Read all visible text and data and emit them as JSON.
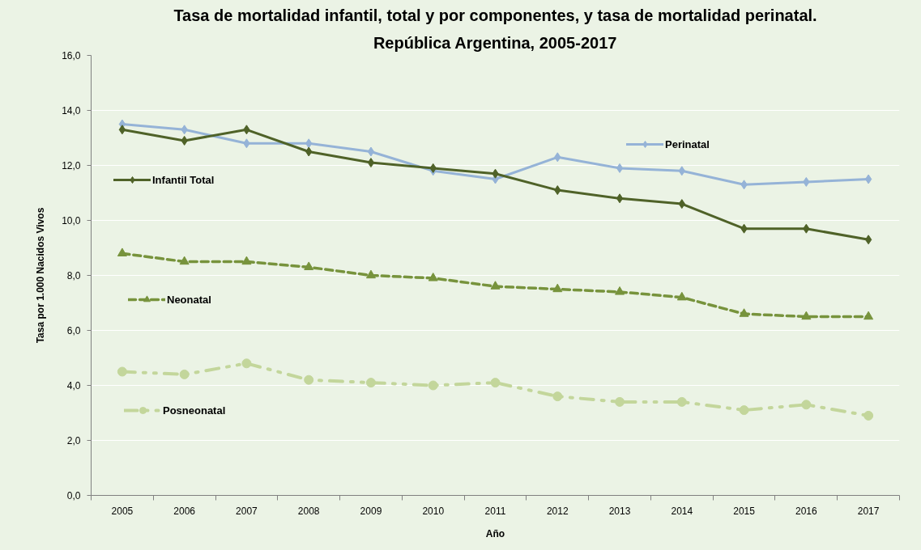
{
  "chart_data": {
    "type": "line",
    "title": "Tasa de mortalidad infantil, total y por componentes, y tasa de mortalidad perinatal.",
    "subtitle": "República Argentina, 2005-2017",
    "xlabel": "Año",
    "ylabel": "Tasa por 1.000 Nacidos Vivos",
    "categories": [
      "2005",
      "2006",
      "2007",
      "2008",
      "2009",
      "2010",
      "2011",
      "2012",
      "2013",
      "2014",
      "2015",
      "2016",
      "2017"
    ],
    "ylim": [
      0,
      16
    ],
    "yticks": [
      {
        "value": 0,
        "label": "0,0"
      },
      {
        "value": 2,
        "label": "2,0"
      },
      {
        "value": 4,
        "label": "4,0"
      },
      {
        "value": 6,
        "label": "6,0"
      },
      {
        "value": 8,
        "label": "8,0"
      },
      {
        "value": 10,
        "label": "10,0"
      },
      {
        "value": 12,
        "label": "12,0"
      },
      {
        "value": 14,
        "label": "14,0"
      },
      {
        "value": 16,
        "label": "16,0"
      }
    ],
    "grid": "y",
    "legend": "left",
    "series": [
      {
        "name": "Perinatal",
        "color": "#95b3d7",
        "marker": "diamond",
        "line_style": "solid",
        "values": [
          13.5,
          13.3,
          12.8,
          12.8,
          12.5,
          11.8,
          11.5,
          12.3,
          11.9,
          11.8,
          11.3,
          11.4,
          11.5
        ]
      },
      {
        "name": "Infantil Total",
        "color": "#4f6228",
        "marker": "diamond",
        "line_style": "solid",
        "values": [
          13.3,
          12.9,
          13.3,
          12.5,
          12.1,
          11.9,
          11.7,
          11.1,
          10.8,
          10.6,
          9.7,
          9.7,
          9.3
        ]
      },
      {
        "name": "Neonatal",
        "color": "#77933c",
        "marker": "triangle",
        "line_style": "dashed",
        "values": [
          8.8,
          8.5,
          8.5,
          8.3,
          8.0,
          7.9,
          7.6,
          7.5,
          7.4,
          7.2,
          6.6,
          6.5,
          6.5
        ]
      },
      {
        "name": "Posneonatal",
        "color": "#c3d69b",
        "marker": "circle",
        "line_style": "dashdot",
        "values": [
          4.5,
          4.4,
          4.8,
          4.2,
          4.1,
          4.0,
          4.1,
          3.6,
          3.4,
          3.4,
          3.1,
          3.3,
          2.9
        ]
      }
    ]
  }
}
